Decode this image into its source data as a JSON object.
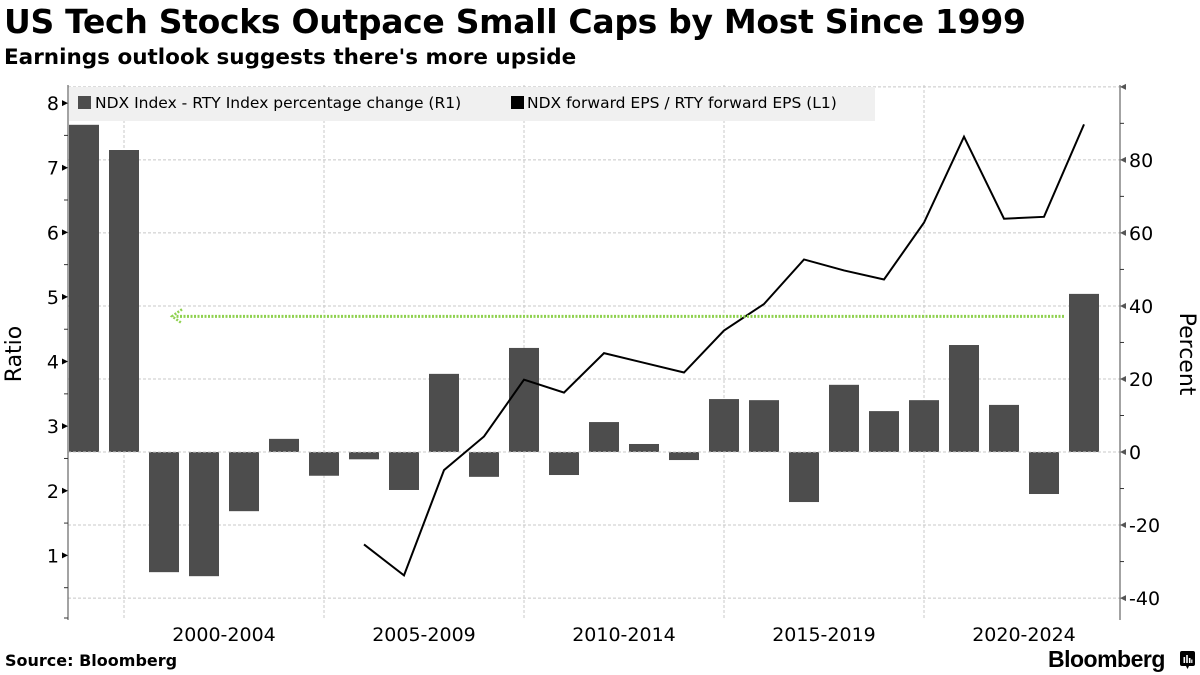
{
  "header": {
    "title": "US Tech Stocks Outpace Small Caps by Most Since 1999",
    "subtitle": "Earnings outlook suggests there's more upside"
  },
  "footer": {
    "source": "Source: Bloomberg",
    "brand": "Bloomberg",
    "brand_icon": "bloomberg-terminal-icon"
  },
  "colors": {
    "bar": "#4d4d4d",
    "line": "#000000",
    "annotation_arrow": "#8fd14f",
    "legend_bg": "#f0f0f0",
    "grid": "#c8c8c8"
  },
  "chart_data": {
    "type": "bar+line",
    "title": "US Tech Stocks Outpace Small Caps by Most Since 1999",
    "subtitle": "Earnings outlook suggests there's more upside",
    "x": [
      1999,
      2000,
      2001,
      2002,
      2003,
      2004,
      2005,
      2006,
      2007,
      2008,
      2009,
      2010,
      2011,
      2012,
      2013,
      2014,
      2015,
      2016,
      2017,
      2018,
      2019,
      2020,
      2021,
      2022,
      2023,
      2024
    ],
    "x_tick_labels": [
      "2000-2004",
      "2005-2009",
      "2010-2014",
      "2015-2019",
      "2020-2024"
    ],
    "series": [
      {
        "name": "NDX Index - RTY Index percentage change (R1)",
        "type": "bar",
        "axis": "right",
        "values": [
          89.6,
          82.7,
          -32.9,
          -34.0,
          -16.2,
          3.6,
          -6.5,
          -2.0,
          -10.4,
          21.4,
          -6.8,
          28.5,
          -6.3,
          8.2,
          2.2,
          -2.2,
          14.5,
          14.2,
          -13.7,
          18.4,
          11.2,
          14.2,
          29.3,
          12.9,
          -11.5,
          43.3
        ]
      },
      {
        "name": "NDX forward EPS / RTY forward EPS (L1)",
        "type": "line",
        "axis": "left",
        "x": [
          2006,
          2007,
          2008,
          2009,
          2010,
          2011,
          2012,
          2013,
          2014,
          2015,
          2016,
          2017,
          2018,
          2019,
          2020,
          2021,
          2022,
          2023,
          2024
        ],
        "values": [
          1.17,
          0.69,
          2.32,
          2.84,
          3.72,
          3.52,
          4.13,
          3.98,
          3.83,
          4.48,
          4.89,
          5.58,
          5.41,
          5.27,
          6.15,
          7.48,
          6.21,
          6.24,
          7.67
        ]
      }
    ],
    "annotations": [
      {
        "type": "arrow",
        "direction": "left",
        "style": "dotted",
        "left_axis_value": 4.7,
        "from_year": 2023.5,
        "to_year": 2001.2
      }
    ],
    "ylabel_left": "Ratio",
    "ylabel_right": "Percent",
    "ylim_left": [
      0,
      8.28
    ],
    "ylim_right": [
      -46,
      100.5
    ],
    "yticks_left": [
      1,
      2,
      3,
      4,
      5,
      6,
      7,
      8
    ],
    "yticks_right": [
      -40,
      -20,
      0,
      20,
      40,
      60,
      80
    ],
    "grid": true,
    "legend_position": "top-left"
  }
}
